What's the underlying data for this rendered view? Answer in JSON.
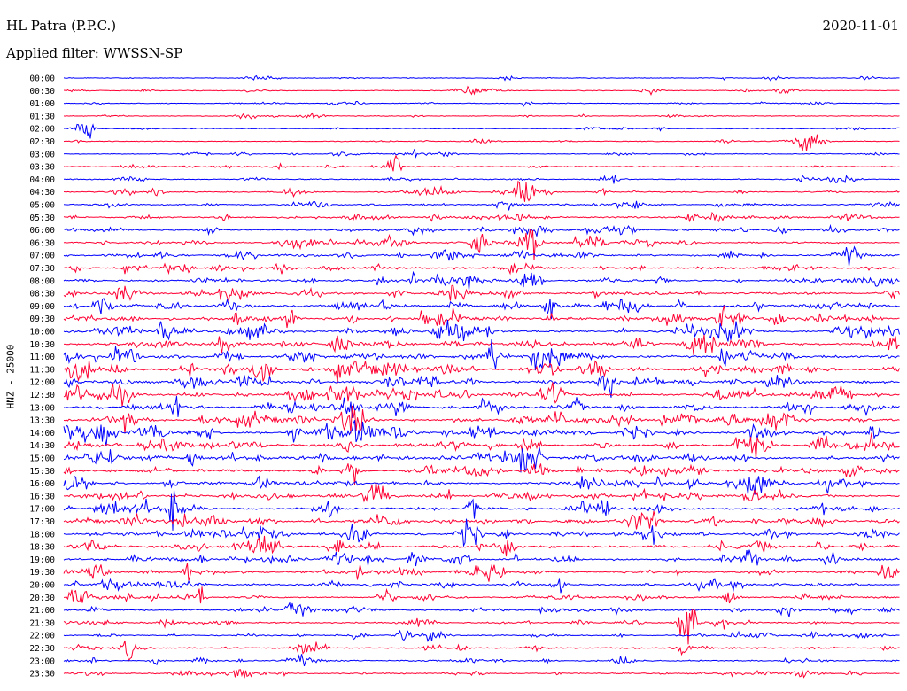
{
  "header": {
    "station": "HL Patra (P.P.C.)",
    "filter": "Applied filter: WWSSN-SP",
    "date": "2020-11-01"
  },
  "chart_data": {
    "type": "line",
    "title": "HL Patra (P.P.C.)",
    "ylabel": "HNZ - 25000",
    "trace_colors": [
      "#0000ff",
      "#ff0033"
    ],
    "rows": [
      "00:00",
      "00:30",
      "01:00",
      "01:30",
      "02:00",
      "02:30",
      "03:00",
      "03:30",
      "04:00",
      "04:30",
      "05:00",
      "05:30",
      "06:00",
      "06:30",
      "07:00",
      "07:30",
      "08:00",
      "08:30",
      "09:00",
      "09:30",
      "10:00",
      "10:30",
      "11:00",
      "11:30",
      "12:00",
      "12:30",
      "13:00",
      "13:30",
      "14:00",
      "14:30",
      "15:00",
      "15:30",
      "16:00",
      "16:30",
      "17:00",
      "17:30",
      "18:00",
      "18:30",
      "19:00",
      "19:30",
      "20:00",
      "20:30",
      "21:00",
      "21:30",
      "22:00",
      "22:30",
      "23:00",
      "23:30"
    ],
    "row_activity": [
      0.12,
      0.15,
      0.14,
      0.12,
      0.13,
      0.12,
      0.15,
      0.22,
      0.28,
      0.32,
      0.45,
      0.5,
      0.55,
      0.6,
      0.65,
      0.72,
      0.75,
      0.8,
      0.85,
      0.9,
      0.95,
      0.95,
      0.95,
      0.95,
      0.95,
      0.95,
      0.95,
      0.95,
      0.95,
      0.95,
      0.95,
      0.95,
      0.9,
      0.88,
      0.85,
      0.82,
      0.8,
      0.78,
      0.75,
      0.7,
      0.65,
      0.6,
      0.55,
      0.5,
      0.45,
      0.45,
      0.4,
      0.4
    ],
    "legend": "none",
    "grid": false
  }
}
